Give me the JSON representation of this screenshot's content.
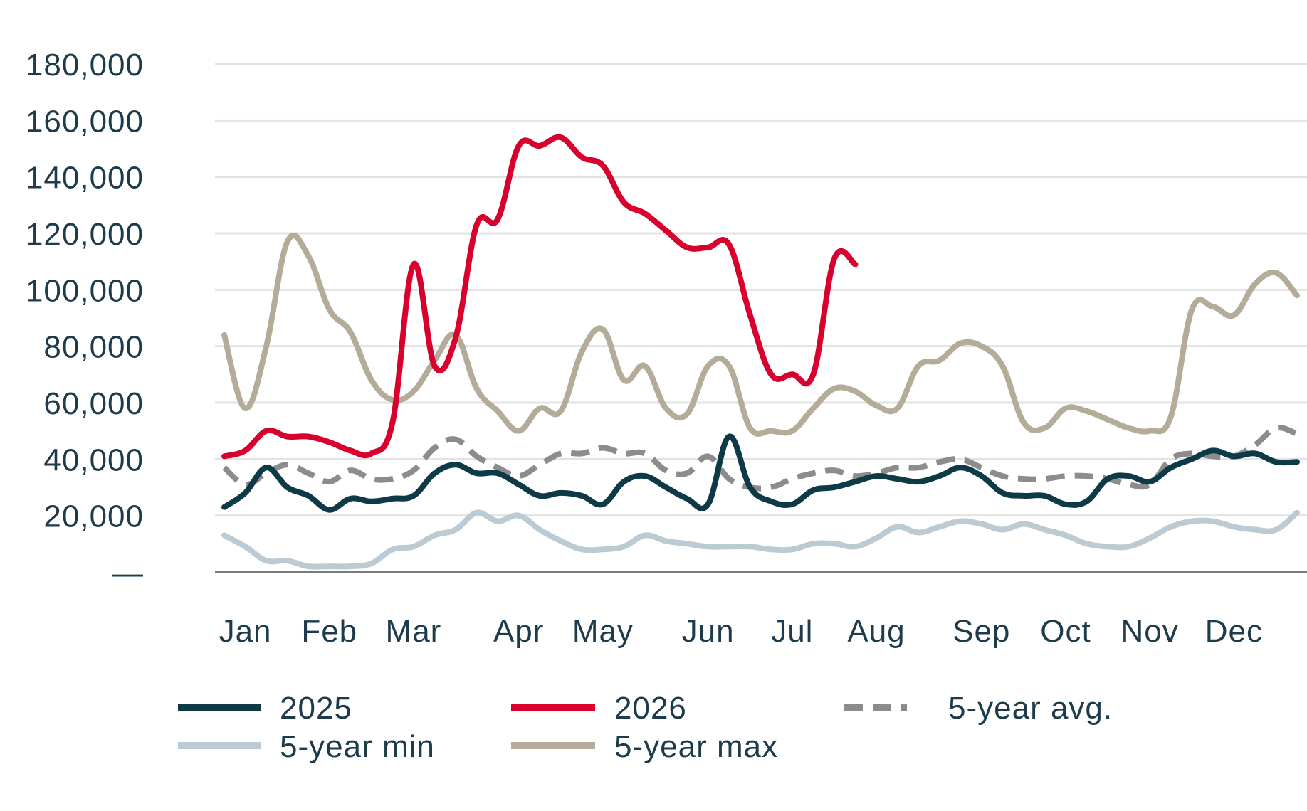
{
  "chart_data": {
    "type": "line",
    "title": "",
    "xlabel": "",
    "ylabel": "",
    "ylim": [
      0,
      180000
    ],
    "y_ticks": [
      {
        "value": 0,
        "label": "—"
      },
      {
        "value": 20000,
        "label": "20,000"
      },
      {
        "value": 40000,
        "label": "40,000"
      },
      {
        "value": 60000,
        "label": "60,000"
      },
      {
        "value": 80000,
        "label": "80,000"
      },
      {
        "value": 100000,
        "label": "100,000"
      },
      {
        "value": 120000,
        "label": "120,000"
      },
      {
        "value": 140000,
        "label": "140,000"
      },
      {
        "value": 160000,
        "label": "160,000"
      },
      {
        "value": 180000,
        "label": "180,000"
      }
    ],
    "xlim": [
      1,
      52
    ],
    "x_unit": "week",
    "month_labels": [
      {
        "label": "Jan",
        "week": 2
      },
      {
        "label": "Feb",
        "week": 6
      },
      {
        "label": "Mar",
        "week": 10
      },
      {
        "label": "Apr",
        "week": 15
      },
      {
        "label": "May",
        "week": 19
      },
      {
        "label": "Jun",
        "week": 24
      },
      {
        "label": "Jul",
        "week": 28
      },
      {
        "label": "Aug",
        "week": 32
      },
      {
        "label": "Sep",
        "week": 37
      },
      {
        "label": "Oct",
        "week": 41
      },
      {
        "label": "Nov",
        "week": 45
      },
      {
        "label": "Dec",
        "week": 49
      }
    ],
    "grid": true,
    "legend_position": "bottom",
    "colors": {
      "2025": "#0e3a48",
      "2026": "#d8002d",
      "avg": "#8c8c8c",
      "min": "#bccbd3",
      "max": "#b5ab99",
      "grid": "#e3e3e3",
      "axis": "#7a7a7a"
    },
    "series": [
      {
        "name": "5-year min",
        "key": "min",
        "style": "solid",
        "x": [
          1,
          2,
          3,
          4,
          5,
          6,
          7,
          8,
          9,
          10,
          11,
          12,
          13,
          14,
          15,
          16,
          17,
          18,
          19,
          20,
          21,
          22,
          23,
          24,
          25,
          26,
          27,
          28,
          29,
          30,
          31,
          32,
          33,
          34,
          35,
          36,
          37,
          38,
          39,
          40,
          41,
          42,
          43,
          44,
          45,
          46,
          47,
          48,
          49,
          50,
          51,
          52
        ],
        "y": [
          13000,
          9000,
          4000,
          4000,
          2000,
          2000,
          2000,
          3000,
          8000,
          9000,
          13000,
          15000,
          21000,
          18000,
          20000,
          15000,
          11000,
          8000,
          8000,
          9000,
          13000,
          11000,
          10000,
          9000,
          9000,
          9000,
          8000,
          8000,
          10000,
          10000,
          9000,
          12000,
          16000,
          14000,
          16000,
          18000,
          17000,
          15000,
          17000,
          15000,
          13000,
          10000,
          9000,
          9000,
          12000,
          16000,
          18000,
          18000,
          16000,
          15000,
          15000,
          21000
        ]
      },
      {
        "name": "5-year max",
        "key": "max",
        "style": "solid",
        "x": [
          1,
          2,
          3,
          4,
          5,
          6,
          7,
          8,
          9,
          10,
          11,
          12,
          13,
          14,
          15,
          16,
          17,
          18,
          19,
          20,
          21,
          22,
          23,
          24,
          25,
          26,
          27,
          28,
          29,
          30,
          31,
          32,
          33,
          34,
          35,
          36,
          37,
          38,
          39,
          40,
          41,
          42,
          43,
          44,
          45,
          46,
          47,
          48,
          49,
          50,
          51,
          52
        ],
        "y": [
          84000,
          58000,
          80000,
          117000,
          112000,
          93000,
          85000,
          68000,
          61000,
          64000,
          75000,
          84000,
          65000,
          57000,
          50000,
          58000,
          57000,
          78000,
          86000,
          68000,
          73000,
          58000,
          56000,
          73000,
          73000,
          51000,
          50000,
          50000,
          58000,
          65000,
          64000,
          59000,
          58000,
          73000,
          75000,
          81000,
          80000,
          73000,
          53000,
          51000,
          58000,
          57000,
          54000,
          51000,
          50000,
          55000,
          93000,
          94000,
          91000,
          102000,
          106000,
          98000
        ]
      },
      {
        "name": "5-year avg.",
        "key": "avg",
        "style": "dashed",
        "x": [
          1,
          2,
          3,
          4,
          5,
          6,
          7,
          8,
          9,
          10,
          11,
          12,
          13,
          14,
          15,
          16,
          17,
          18,
          19,
          20,
          21,
          22,
          23,
          24,
          25,
          26,
          27,
          28,
          29,
          30,
          31,
          32,
          33,
          34,
          35,
          36,
          37,
          38,
          39,
          40,
          41,
          42,
          43,
          44,
          45,
          46,
          47,
          48,
          49,
          50,
          51,
          52
        ],
        "y": [
          37000,
          31000,
          35000,
          38000,
          35000,
          32000,
          36000,
          33000,
          33000,
          36000,
          44000,
          47000,
          41000,
          37000,
          34000,
          38000,
          42000,
          42000,
          44000,
          42000,
          42000,
          36000,
          35000,
          41000,
          33000,
          30000,
          30000,
          33000,
          35000,
          36000,
          34000,
          35000,
          37000,
          37000,
          39000,
          40000,
          37000,
          34000,
          33000,
          33000,
          34000,
          34000,
          33000,
          31000,
          31000,
          40000,
          42000,
          41000,
          41000,
          45000,
          51000,
          49000
        ]
      },
      {
        "name": "2025",
        "key": "2025",
        "style": "solid",
        "x": [
          1,
          2,
          3,
          4,
          5,
          6,
          7,
          8,
          9,
          10,
          11,
          12,
          13,
          14,
          15,
          16,
          17,
          18,
          19,
          20,
          21,
          22,
          23,
          24,
          25,
          26,
          27,
          28,
          29,
          30,
          31,
          32,
          33,
          34,
          35,
          36,
          37,
          38,
          39,
          40,
          41,
          42,
          43,
          44,
          45,
          46,
          47,
          48,
          49,
          50,
          51,
          52
        ],
        "y": [
          23000,
          28000,
          37000,
          30000,
          27000,
          22000,
          26000,
          25000,
          26000,
          27000,
          35000,
          38000,
          35000,
          35000,
          31000,
          27000,
          28000,
          27000,
          24000,
          32000,
          34000,
          30000,
          26000,
          24000,
          48000,
          30000,
          25000,
          24000,
          29000,
          30000,
          32000,
          34000,
          33000,
          32000,
          34000,
          37000,
          34000,
          28000,
          27000,
          27000,
          24000,
          25000,
          33000,
          34000,
          32000,
          37000,
          40000,
          43000,
          41000,
          42000,
          39000,
          39000
        ]
      },
      {
        "name": "2026",
        "key": "2026",
        "style": "solid",
        "x": [
          1,
          2,
          3,
          4,
          5,
          6,
          7,
          8,
          9,
          10,
          11,
          12,
          13,
          14,
          15,
          16,
          17,
          18,
          19,
          20,
          21,
          22,
          23,
          24,
          25,
          26,
          27,
          28,
          29,
          30,
          31
        ],
        "y": [
          41000,
          43000,
          50000,
          48000,
          48000,
          46000,
          43000,
          42000,
          53000,
          109000,
          73000,
          83000,
          123000,
          125000,
          151000,
          151000,
          154000,
          147000,
          144000,
          131000,
          127000,
          121000,
          115000,
          115000,
          116000,
          91000,
          70000,
          70000,
          70000,
          111000,
          109000
        ]
      }
    ]
  },
  "legend": {
    "items": [
      {
        "key": "2025",
        "label": "2025"
      },
      {
        "key": "2026",
        "label": "2026"
      },
      {
        "key": "avg",
        "label": "5-year avg."
      },
      {
        "key": "min",
        "label": "5-year min"
      },
      {
        "key": "max",
        "label": "5-year max"
      }
    ]
  }
}
